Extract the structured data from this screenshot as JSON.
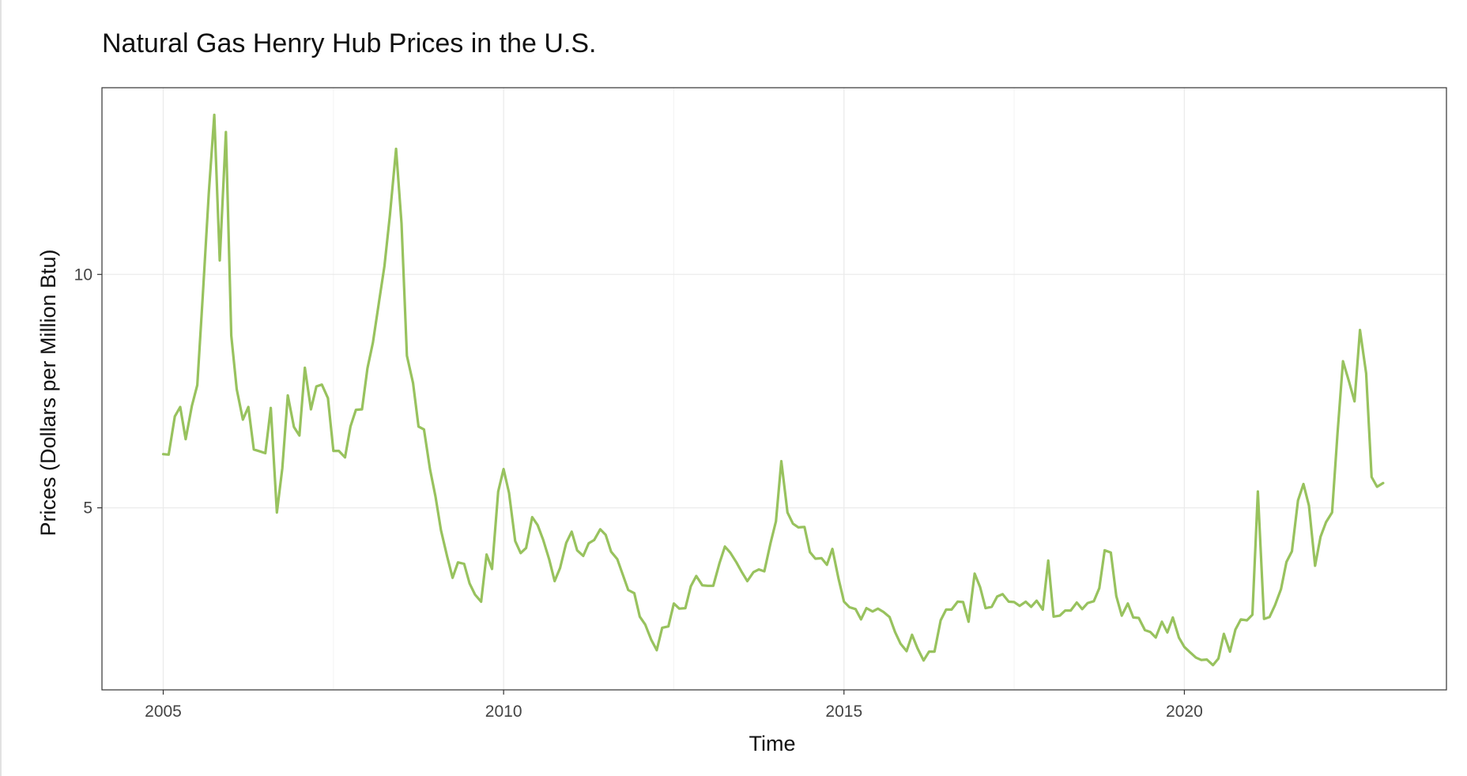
{
  "chart_data": {
    "type": "line",
    "title": "Natural Gas Henry Hub Prices in the U.S.",
    "xlabel": "Time",
    "ylabel": "Prices (Dollars per Million Btu)",
    "x_ticks": [
      2005,
      2010,
      2015,
      2020
    ],
    "y_ticks": [
      5,
      10
    ],
    "xlim": [
      2004.1,
      2023.85
    ],
    "ylim": [
      1.1,
      14.0
    ],
    "grid": true,
    "legend": "none",
    "series": [
      {
        "color": "#98c25e",
        "x": [
          2005.0,
          2005.08,
          2005.17,
          2005.25,
          2005.33,
          2005.42,
          2005.5,
          2005.58,
          2005.67,
          2005.75,
          2005.83,
          2005.92,
          2006.0,
          2006.08,
          2006.17,
          2006.25,
          2006.33,
          2006.42,
          2006.5,
          2006.58,
          2006.67,
          2006.75,
          2006.83,
          2006.92,
          2007.0,
          2007.08,
          2007.17,
          2007.25,
          2007.33,
          2007.42,
          2007.5,
          2007.58,
          2007.67,
          2007.75,
          2007.83,
          2007.92,
          2008.0,
          2008.08,
          2008.17,
          2008.25,
          2008.33,
          2008.42,
          2008.5,
          2008.58,
          2008.67,
          2008.75,
          2008.83,
          2008.92,
          2009.0,
          2009.08,
          2009.17,
          2009.25,
          2009.33,
          2009.42,
          2009.5,
          2009.58,
          2009.67,
          2009.75,
          2009.83,
          2009.92,
          2010.0,
          2010.08,
          2010.17,
          2010.25,
          2010.33,
          2010.42,
          2010.5,
          2010.58,
          2010.67,
          2010.75,
          2010.83,
          2010.92,
          2011.0,
          2011.08,
          2011.17,
          2011.25,
          2011.33,
          2011.42,
          2011.5,
          2011.58,
          2011.67,
          2011.75,
          2011.83,
          2011.92,
          2012.0,
          2012.08,
          2012.17,
          2012.25,
          2012.33,
          2012.42,
          2012.5,
          2012.58,
          2012.67,
          2012.75,
          2012.83,
          2012.92,
          2013.0,
          2013.08,
          2013.17,
          2013.25,
          2013.33,
          2013.42,
          2013.5,
          2013.58,
          2013.67,
          2013.75,
          2013.83,
          2013.92,
          2014.0,
          2014.08,
          2014.17,
          2014.25,
          2014.33,
          2014.42,
          2014.5,
          2014.58,
          2014.67,
          2014.75,
          2014.83,
          2014.92,
          2015.0,
          2015.08,
          2015.17,
          2015.25,
          2015.33,
          2015.42,
          2015.5,
          2015.58,
          2015.67,
          2015.75,
          2015.83,
          2015.92,
          2016.0,
          2016.08,
          2016.17,
          2016.25,
          2016.33,
          2016.42,
          2016.5,
          2016.58,
          2016.67,
          2016.75,
          2016.83,
          2016.92,
          2017.0,
          2017.08,
          2017.17,
          2017.25,
          2017.33,
          2017.42,
          2017.5,
          2017.58,
          2017.67,
          2017.75,
          2017.83,
          2017.92,
          2018.0,
          2018.08,
          2018.17,
          2018.25,
          2018.33,
          2018.42,
          2018.5,
          2018.58,
          2018.67,
          2018.75,
          2018.83,
          2018.92,
          2019.0,
          2019.08,
          2019.17,
          2019.25,
          2019.33,
          2019.42,
          2019.5,
          2019.58,
          2019.67,
          2019.75,
          2019.83,
          2019.92,
          2020.0,
          2020.08,
          2020.17,
          2020.25,
          2020.33,
          2020.42,
          2020.5,
          2020.58,
          2020.67,
          2020.75,
          2020.83,
          2020.92,
          2021.0,
          2021.08,
          2021.17,
          2021.25,
          2021.33,
          2021.42,
          2021.5,
          2021.58,
          2021.67,
          2021.75,
          2021.83,
          2021.92,
          2022.0,
          2022.08,
          2022.17,
          2022.25,
          2022.33,
          2022.42,
          2022.5,
          2022.58,
          2022.67,
          2022.75,
          2022.83,
          2022.92
        ],
        "y": [
          6.15,
          6.14,
          6.96,
          7.16,
          6.47,
          7.18,
          7.63,
          9.53,
          11.75,
          13.42,
          10.3,
          13.05,
          8.69,
          7.54,
          6.89,
          7.16,
          6.25,
          6.21,
          6.17,
          7.14,
          4.9,
          5.85,
          7.41,
          6.73,
          6.55,
          8.0,
          7.11,
          7.6,
          7.64,
          7.35,
          6.22,
          6.22,
          6.08,
          6.74,
          7.1,
          7.11,
          7.99,
          8.54,
          9.41,
          10.18,
          11.27,
          12.69,
          11.09,
          8.26,
          7.67,
          6.74,
          6.68,
          5.82,
          5.24,
          4.52,
          3.96,
          3.5,
          3.83,
          3.8,
          3.38,
          3.14,
          2.99,
          4.0,
          3.69,
          5.35,
          5.83,
          5.32,
          4.29,
          4.03,
          4.14,
          4.8,
          4.63,
          4.32,
          3.89,
          3.43,
          3.71,
          4.25,
          4.49,
          4.09,
          3.97,
          4.24,
          4.31,
          4.54,
          4.42,
          4.06,
          3.9,
          3.57,
          3.24,
          3.17,
          2.67,
          2.5,
          2.17,
          1.95,
          2.43,
          2.46,
          2.95,
          2.84,
          2.85,
          3.32,
          3.54,
          3.34,
          3.33,
          3.33,
          3.81,
          4.17,
          4.04,
          3.83,
          3.62,
          3.43,
          3.62,
          3.68,
          3.64,
          4.24,
          4.71,
          6.0,
          4.9,
          4.66,
          4.58,
          4.59,
          4.05,
          3.91,
          3.92,
          3.78,
          4.12,
          3.48,
          2.99,
          2.87,
          2.83,
          2.61,
          2.85,
          2.78,
          2.84,
          2.77,
          2.66,
          2.34,
          2.09,
          1.93,
          2.28,
          1.99,
          1.73,
          1.92,
          1.92,
          2.59,
          2.82,
          2.82,
          2.99,
          2.98,
          2.56,
          3.59,
          3.3,
          2.85,
          2.88,
          3.1,
          3.15,
          2.99,
          2.98,
          2.9,
          2.99,
          2.88,
          3.01,
          2.82,
          3.87,
          2.67,
          2.69,
          2.8,
          2.8,
          2.97,
          2.83,
          2.96,
          3.0,
          3.28,
          4.09,
          4.04,
          3.11,
          2.69,
          2.95,
          2.65,
          2.64,
          2.38,
          2.34,
          2.22,
          2.56,
          2.33,
          2.65,
          2.22,
          2.02,
          1.91,
          1.79,
          1.74,
          1.75,
          1.63,
          1.77,
          2.3,
          1.92,
          2.39,
          2.61,
          2.59,
          2.71,
          5.35,
          2.62,
          2.66,
          2.91,
          3.26,
          3.84,
          4.07,
          5.16,
          5.51,
          5.05,
          3.76,
          4.38,
          4.69,
          4.9,
          6.6,
          8.14,
          7.7,
          7.28,
          8.81,
          7.88,
          5.66,
          5.45,
          5.53
        ]
      }
    ]
  }
}
